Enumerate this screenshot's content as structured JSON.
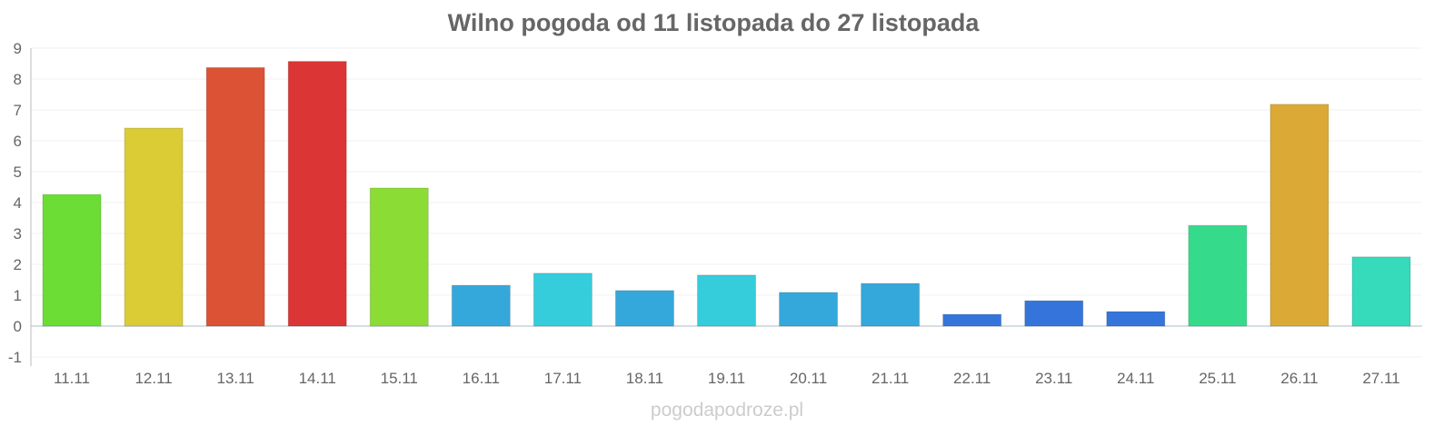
{
  "chart_data": {
    "type": "bar",
    "title": "Wilno pogoda od 11 listopada do 27 listopada",
    "xlabel": "",
    "ylabel": "",
    "ylim": [
      -1,
      9
    ],
    "yticks": [
      -1,
      0,
      1,
      2,
      3,
      4,
      5,
      6,
      7,
      8,
      9
    ],
    "grid": true,
    "categories": [
      "11.11",
      "12.11",
      "13.11",
      "14.11",
      "15.11",
      "16.11",
      "17.11",
      "18.11",
      "19.11",
      "20.11",
      "21.11",
      "22.11",
      "23.11",
      "24.11",
      "25.11",
      "26.11",
      "27.11"
    ],
    "values": [
      4.26,
      6.41,
      8.37,
      8.57,
      4.47,
      1.32,
      1.71,
      1.15,
      1.65,
      1.09,
      1.38,
      0.38,
      0.82,
      0.47,
      3.26,
      7.18,
      2.24
    ],
    "colors": [
      "#6bdd35",
      "#dbcb35",
      "#db5235",
      "#db3535",
      "#8bdd35",
      "#35a8db",
      "#35cddb",
      "#35a8db",
      "#35cddb",
      "#35a8db",
      "#35a8db",
      "#3575db",
      "#3575db",
      "#3575db",
      "#35db8b",
      "#dba935",
      "#35dbbb"
    ]
  },
  "watermark": "pogodapodroze.pl"
}
